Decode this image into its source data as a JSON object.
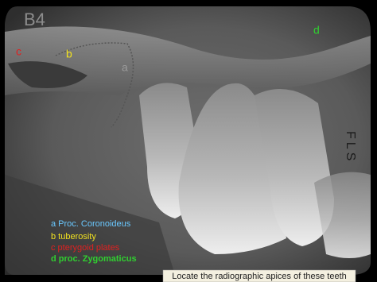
{
  "slide_label": "B4",
  "markers": {
    "a": "a",
    "b": "b",
    "c": "c",
    "d": "d"
  },
  "film_mark": "FLS",
  "legend": [
    "a Proc. Coronoideus",
    "b tuberosity",
    "c pterygoid plates",
    "d proc. Zygomaticus"
  ],
  "caption": "Locate the radiographic apices of these teeth"
}
